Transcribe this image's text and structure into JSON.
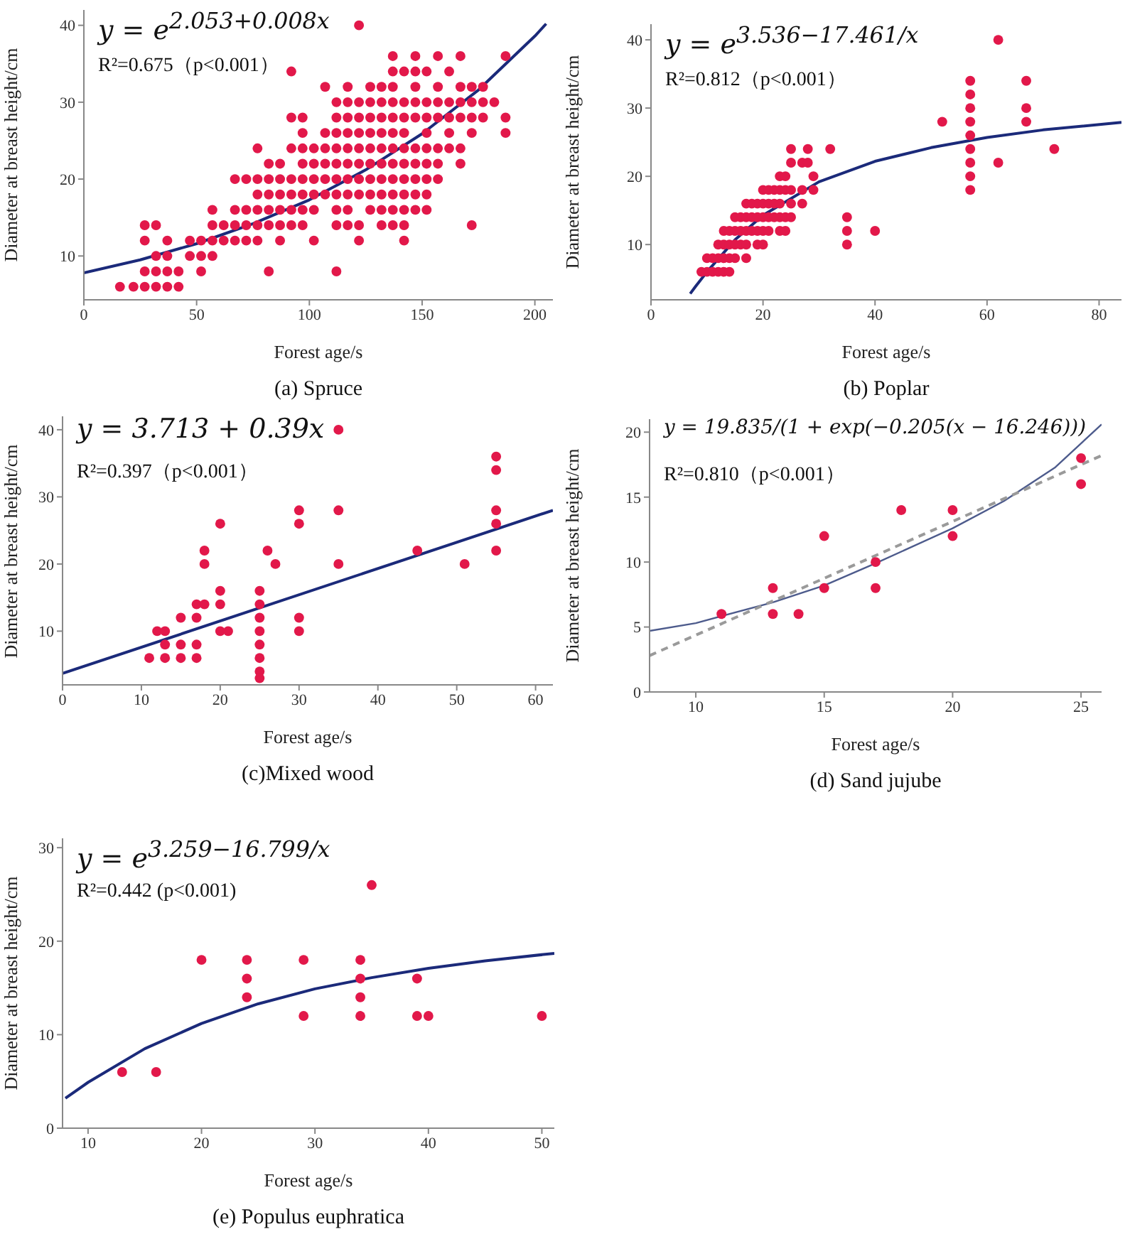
{
  "chart_data": [
    {
      "type": "scatter",
      "title": "(a) Spruce",
      "xlabel": "Forest age/s",
      "ylabel": "Diameter at breast height/cm",
      "xlim": [
        0,
        208
      ],
      "ylim": [
        4.3,
        42
      ],
      "xticks": [
        0,
        50,
        100,
        150,
        200
      ],
      "yticks": [
        10,
        20,
        30,
        40
      ],
      "marker": "circle",
      "annotations": [
        "y = e$^{2.053+0.008x}$",
        "R²=0.675（p<0.001）"
      ],
      "series": [
        {
          "type": "scatter",
          "color": "#e2184a",
          "x": [
            16,
            22,
            27,
            27,
            27,
            27,
            32,
            32,
            32,
            32,
            37,
            37,
            37,
            37,
            42,
            42,
            47,
            47,
            52,
            52,
            52,
            57,
            57,
            57,
            57,
            62,
            62,
            67,
            67,
            67,
            67,
            72,
            72,
            72,
            72,
            77,
            77,
            77,
            77,
            77,
            77,
            82,
            82,
            82,
            82,
            82,
            82,
            87,
            87,
            87,
            87,
            87,
            87,
            92,
            92,
            92,
            92,
            92,
            92,
            92,
            97,
            97,
            97,
            97,
            97,
            97,
            97,
            97,
            102,
            102,
            102,
            102,
            102,
            102,
            107,
            107,
            107,
            107,
            107,
            107,
            112,
            112,
            112,
            112,
            112,
            112,
            112,
            112,
            112,
            112,
            117,
            117,
            117,
            117,
            117,
            117,
            117,
            117,
            117,
            117,
            122,
            122,
            122,
            122,
            122,
            122,
            122,
            122,
            122,
            122,
            127,
            127,
            127,
            127,
            127,
            127,
            127,
            127,
            127,
            132,
            132,
            132,
            132,
            132,
            132,
            132,
            132,
            132,
            132,
            137,
            137,
            137,
            137,
            137,
            137,
            137,
            137,
            137,
            137,
            137,
            137,
            142,
            142,
            142,
            142,
            142,
            142,
            142,
            142,
            142,
            142,
            142,
            147,
            147,
            147,
            147,
            147,
            147,
            147,
            147,
            147,
            147,
            152,
            152,
            152,
            152,
            152,
            152,
            152,
            152,
            152,
            157,
            157,
            157,
            157,
            157,
            157,
            157,
            162,
            162,
            162,
            162,
            162,
            167,
            167,
            167,
            167,
            167,
            167,
            172,
            172,
            172,
            172,
            172,
            177,
            177,
            177,
            182,
            187,
            187,
            187
          ],
          "values": [
            6,
            6,
            6,
            8,
            12,
            14,
            6,
            8,
            10,
            14,
            6,
            8,
            10,
            12,
            6,
            8,
            10,
            12,
            8,
            10,
            12,
            10,
            12,
            14,
            16,
            12,
            14,
            12,
            14,
            16,
            20,
            12,
            14,
            16,
            20,
            12,
            14,
            16,
            18,
            20,
            24,
            8,
            14,
            16,
            18,
            20,
            22,
            12,
            14,
            16,
            18,
            20,
            22,
            14,
            16,
            18,
            20,
            24,
            28,
            34,
            14,
            16,
            18,
            20,
            22,
            24,
            26,
            28,
            12,
            16,
            18,
            20,
            22,
            24,
            18,
            20,
            22,
            24,
            26,
            32,
            8,
            14,
            16,
            18,
            20,
            22,
            24,
            26,
            28,
            30,
            14,
            16,
            18,
            20,
            22,
            24,
            26,
            28,
            30,
            32,
            12,
            14,
            18,
            20,
            22,
            24,
            26,
            28,
            30,
            40,
            16,
            18,
            20,
            22,
            24,
            26,
            28,
            30,
            32,
            14,
            16,
            18,
            20,
            22,
            24,
            26,
            28,
            30,
            32,
            14,
            16,
            18,
            20,
            22,
            24,
            26,
            28,
            30,
            32,
            34,
            36,
            12,
            14,
            16,
            18,
            20,
            22,
            24,
            26,
            28,
            30,
            34,
            16,
            18,
            20,
            22,
            24,
            28,
            30,
            32,
            34,
            36,
            16,
            18,
            20,
            22,
            24,
            26,
            28,
            30,
            34,
            20,
            22,
            24,
            28,
            30,
            32,
            36,
            24,
            26,
            28,
            30,
            34,
            22,
            24,
            28,
            30,
            32,
            36,
            14,
            26,
            28,
            30,
            32,
            28,
            30,
            32,
            30,
            26,
            28,
            36
          ]
        },
        {
          "type": "line",
          "color": "#1b2a7a",
          "marker": "none",
          "line_style": "solid",
          "x": [
            0,
            25,
            50,
            75,
            100,
            125,
            150,
            175,
            200,
            205
          ],
          "values": [
            7.8,
            9.5,
            11.6,
            14.2,
            17.3,
            21.2,
            25.9,
            31.6,
            38.6,
            40.2
          ]
        }
      ]
    },
    {
      "type": "scatter",
      "title": "(b) Poplar",
      "xlabel": "Forest age/s",
      "ylabel": "Diameter at breast height/cm",
      "xlim": [
        0,
        84
      ],
      "ylim": [
        1.9,
        42.3
      ],
      "xticks": [
        0,
        20,
        40,
        60,
        80
      ],
      "yticks": [
        10,
        20,
        30,
        40
      ],
      "marker": "circle",
      "annotations": [
        "y = e$^{3.536−17.461/x}$",
        "R²=0.812（p<0.001）"
      ],
      "series": [
        {
          "type": "scatter",
          "color": "#e2184a",
          "x": [
            9,
            10,
            11,
            12,
            13,
            14,
            10,
            11,
            12,
            13,
            14,
            15,
            17,
            12,
            13,
            14,
            15,
            16,
            17,
            19,
            20,
            35,
            13,
            14,
            15,
            16,
            17,
            18,
            19,
            20,
            21,
            23,
            24,
            35,
            40,
            15,
            16,
            17,
            18,
            19,
            20,
            21,
            22,
            23,
            24,
            25,
            35,
            17,
            18,
            19,
            20,
            21,
            22,
            23,
            25,
            27,
            20,
            21,
            22,
            23,
            24,
            25,
            27,
            29,
            57,
            23,
            24,
            29,
            57,
            25,
            27,
            28,
            57,
            62,
            25,
            28,
            32,
            57,
            72,
            57,
            52,
            57,
            67,
            57,
            67,
            57,
            57,
            67,
            62
          ],
          "values": [
            6,
            6,
            6,
            6,
            6,
            6,
            8,
            8,
            8,
            8,
            8,
            8,
            8,
            10,
            10,
            10,
            10,
            10,
            10,
            10,
            10,
            10,
            12,
            12,
            12,
            12,
            12,
            12,
            12,
            12,
            12,
            12,
            12,
            12,
            12,
            14,
            14,
            14,
            14,
            14,
            14,
            14,
            14,
            14,
            14,
            14,
            14,
            16,
            16,
            16,
            16,
            16,
            16,
            16,
            16,
            16,
            18,
            18,
            18,
            18,
            18,
            18,
            18,
            18,
            18,
            20,
            20,
            20,
            20,
            22,
            22,
            22,
            22,
            22,
            24,
            24,
            24,
            24,
            24,
            26,
            28,
            28,
            28,
            30,
            30,
            32,
            34,
            34,
            40
          ]
        },
        {
          "type": "line",
          "color": "#1b2a7a",
          "marker": "none",
          "line_style": "solid",
          "x": [
            7,
            8,
            10,
            15,
            20,
            30,
            40,
            50,
            60,
            70,
            84
          ],
          "values": [
            2.8,
            3.9,
            6,
            10.7,
            14.3,
            19.2,
            22.2,
            24.2,
            25.7,
            26.8,
            27.9
          ]
        }
      ]
    },
    {
      "type": "scatter",
      "title": "(c)Mixed wood",
      "xlabel": "Forest age/s",
      "ylabel": "Diameter at breast height/cm",
      "xlim": [
        0,
        62.2
      ],
      "ylim": [
        2,
        42
      ],
      "xticks": [
        0,
        10,
        20,
        30,
        40,
        50,
        60
      ],
      "yticks": [
        10,
        20,
        30,
        40
      ],
      "marker": "circle",
      "annotations": [
        "y = 3.713 + 0.39x",
        "R²=0.397（p<0.001）"
      ],
      "series": [
        {
          "type": "scatter",
          "color": "#e2184a",
          "x": [
            11,
            12,
            13,
            13,
            13,
            15,
            15,
            15,
            17,
            17,
            17,
            17,
            18,
            18,
            18,
            20,
            20,
            20,
            20,
            21,
            25,
            25,
            25,
            25,
            25,
            25,
            25,
            25,
            26,
            27,
            30,
            30,
            30,
            30,
            35,
            35,
            35,
            45,
            51,
            55,
            55,
            55,
            55,
            55
          ],
          "values": [
            6,
            10,
            10,
            8,
            6,
            12,
            8,
            6,
            14,
            12,
            8,
            6,
            22,
            20,
            14,
            26,
            16,
            14,
            10,
            10,
            16,
            14,
            12,
            10,
            8,
            6,
            4,
            3,
            22,
            20,
            28,
            26,
            12,
            10,
            40,
            28,
            20,
            22,
            20,
            36,
            34,
            28,
            26,
            22
          ]
        },
        {
          "type": "line",
          "color": "#1b2a7a",
          "marker": "none",
          "line_style": "solid",
          "x": [
            0,
            62.2
          ],
          "values": [
            3.7,
            28
          ]
        }
      ]
    },
    {
      "type": "scatter",
      "title": "(d) Sand jujube",
      "xlabel": "Forest age/s",
      "ylabel": "Diameter at breast height/cm",
      "xlim": [
        8.2,
        25.8
      ],
      "ylim": [
        0,
        21
      ],
      "xticks": [
        10,
        15,
        20,
        25
      ],
      "yticks": [
        0,
        5,
        10,
        15,
        20
      ],
      "marker": "circle",
      "annotations": [
        "y = 19.835/(1 + exp(−0.205(x − 16.246)))",
        "R²=0.810（p<0.001）"
      ],
      "series": [
        {
          "type": "scatter",
          "color": "#e2184a",
          "x": [
            11,
            13,
            13,
            14,
            15,
            15,
            17,
            17,
            18,
            20,
            20,
            25,
            25
          ],
          "values": [
            6,
            8,
            6,
            6,
            12,
            8,
            10,
            8,
            14,
            14,
            12,
            18,
            16
          ]
        },
        {
          "type": "line",
          "color": "#4d5b8c",
          "marker": "none",
          "line_style": "solid",
          "x": [
            8.2,
            10,
            13,
            15,
            17,
            20,
            22,
            24,
            25.8
          ],
          "values": [
            4.7,
            5.3,
            6.9,
            8.2,
            9.9,
            12.6,
            14.7,
            17.3,
            20.6
          ]
        },
        {
          "type": "line",
          "color": "#9a9a9a",
          "marker": "none",
          "line_style": "dashed",
          "x": [
            8.2,
            25.8
          ],
          "values": [
            2.8,
            18.2
          ]
        }
      ]
    },
    {
      "type": "scatter",
      "title": "(e) Populus euphratica",
      "xlabel": "Forest age/s",
      "ylabel": "Diameter at breast height/cm",
      "xlim": [
        7.75,
        51.1
      ],
      "ylim": [
        0,
        31
      ],
      "xticks": [
        10,
        20,
        30,
        40,
        50
      ],
      "yticks": [
        0,
        10,
        20,
        30
      ],
      "marker": "circle",
      "annotations": [
        "y = e$^{3.259−16.799/x}$",
        "R²=0.442 (p<0.001)"
      ],
      "series": [
        {
          "type": "scatter",
          "color": "#e2184a",
          "x": [
            13,
            16,
            20,
            24,
            24,
            24,
            29,
            29,
            34,
            34,
            34,
            34,
            35,
            39,
            39,
            40,
            50
          ],
          "values": [
            6,
            6,
            18,
            18,
            16,
            14,
            18,
            12,
            18,
            16,
            14,
            12,
            26,
            16,
            12,
            12,
            12
          ]
        },
        {
          "type": "line",
          "color": "#1b2a7a",
          "marker": "none",
          "line_style": "solid",
          "x": [
            8,
            10,
            15,
            20,
            25,
            30,
            35,
            40,
            45,
            51.1
          ],
          "values": [
            3.2,
            4.9,
            8.5,
            11.2,
            13.3,
            14.9,
            16.1,
            17.1,
            17.9,
            18.7
          ]
        }
      ]
    }
  ]
}
